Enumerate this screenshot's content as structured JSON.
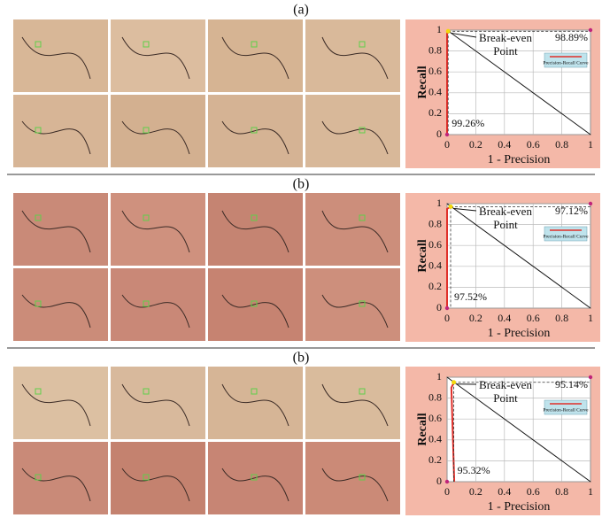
{
  "panel_labels": [
    "(a)",
    "(b)",
    "(b)"
  ],
  "chart_data": [
    {
      "type": "line",
      "xlabel": "1 - Precision",
      "ylabel": "Recall",
      "xlim": [
        0,
        1
      ],
      "ylim": [
        0,
        1
      ],
      "xticks": [
        0,
        0.2,
        0.4,
        0.6,
        0.8,
        1
      ],
      "yticks": [
        0,
        0.2,
        0.4,
        0.6,
        0.8,
        1
      ],
      "grid": true,
      "series": [
        {
          "name": "Precision-Recall Curve",
          "color": "#e0302a",
          "x": [
            0,
            0,
            0.007
          ],
          "y": [
            0,
            0.97,
            0.989
          ]
        }
      ],
      "annotation": [
        "Break-even",
        "Point"
      ],
      "break_even": {
        "recall": 98.89,
        "precision": 99.26,
        "value_labels": [
          "98.89%",
          "99.26%"
        ]
      }
    },
    {
      "type": "line",
      "xlabel": "1 - Precision",
      "ylabel": "Recall",
      "xlim": [
        0,
        1
      ],
      "ylim": [
        0,
        1
      ],
      "xticks": [
        0,
        0.2,
        0.4,
        0.6,
        0.8,
        1
      ],
      "yticks": [
        0,
        0.2,
        0.4,
        0.6,
        0.8,
        1
      ],
      "grid": true,
      "series": [
        {
          "name": "Precision-Recall Curve",
          "color": "#e0302a",
          "x": [
            0,
            0,
            0.025
          ],
          "y": [
            0,
            0.95,
            0.971
          ]
        }
      ],
      "annotation": [
        "Break-even",
        "Point"
      ],
      "break_even": {
        "recall": 97.12,
        "precision": 97.52,
        "value_labels": [
          "97.12%",
          "97.52%"
        ]
      }
    },
    {
      "type": "line",
      "xlabel": "1 - Precision",
      "ylabel": "Recall",
      "xlim": [
        0,
        1
      ],
      "ylim": [
        0,
        1
      ],
      "xticks": [
        0,
        0.2,
        0.4,
        0.6,
        0.8,
        1
      ],
      "yticks": [
        0,
        0.2,
        0.4,
        0.6,
        0.8,
        1
      ],
      "grid": true,
      "series": [
        {
          "name": "Precision-Recall Curve",
          "color": "#e0302a",
          "x": [
            0.05,
            0.03,
            0.048
          ],
          "y": [
            0,
            0.9,
            0.951
          ]
        }
      ],
      "annotation": [
        "Break-even",
        "Point"
      ],
      "break_even": {
        "recall": 95.14,
        "precision": 95.32,
        "value_labels": [
          "95.14%",
          "95.32%"
        ]
      }
    }
  ]
}
